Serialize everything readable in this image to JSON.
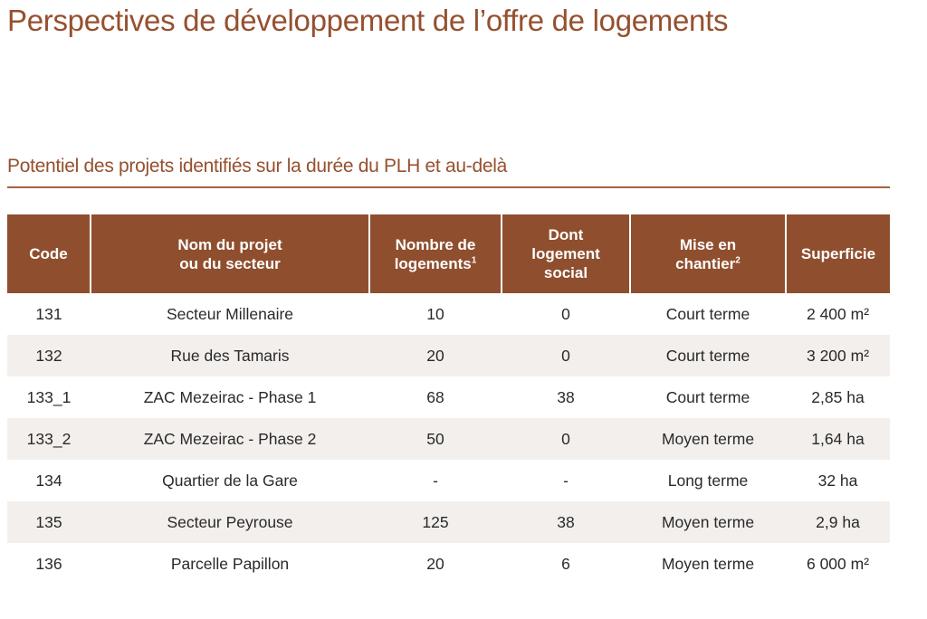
{
  "page_title": "Perspectives de développement de l’offre de logements",
  "section_title": "Potentiel des projets identifiés sur la durée du PLH et au-delà",
  "table": {
    "headers": {
      "code": [
        "Code"
      ],
      "nom": [
        "Nom du projet",
        "ou du secteur"
      ],
      "nombre": [
        "Nombre de",
        "logements"
      ],
      "nombre_note": "1",
      "social": [
        "Dont",
        "logement",
        "social"
      ],
      "mise": [
        "Mise en",
        "chantier"
      ],
      "mise_note": "2",
      "superficie": [
        "Superficie"
      ]
    },
    "rows": [
      {
        "code": "131",
        "nom": "Secteur Millenaire",
        "nombre": "10",
        "social": "0",
        "mise": "Court terme",
        "superficie": "2 400 m²"
      },
      {
        "code": "132",
        "nom": "Rue des Tamaris",
        "nombre": "20",
        "social": "0",
        "mise": "Court terme",
        "superficie": "3 200 m²"
      },
      {
        "code": "133_1",
        "nom": "ZAC Mezeirac - Phase 1",
        "nombre": "68",
        "social": "38",
        "mise": "Court terme",
        "superficie": "2,85 ha"
      },
      {
        "code": "133_2",
        "nom": "ZAC Mezeirac - Phase 2",
        "nombre": "50",
        "social": "0",
        "mise": "Moyen terme",
        "superficie": "1,64 ha"
      },
      {
        "code": "134",
        "nom": "Quartier de la Gare",
        "nombre": "-",
        "social": "-",
        "mise": "Long terme",
        "superficie": "32 ha"
      },
      {
        "code": "135",
        "nom": "Secteur Peyrouse",
        "nombre": "125",
        "social": "38",
        "mise": "Moyen terme",
        "superficie": "2,9 ha"
      },
      {
        "code": "136",
        "nom": "Parcelle Papillon",
        "nombre": "20",
        "social": "6",
        "mise": "Moyen terme",
        "superficie": "6 000 m²"
      }
    ]
  }
}
